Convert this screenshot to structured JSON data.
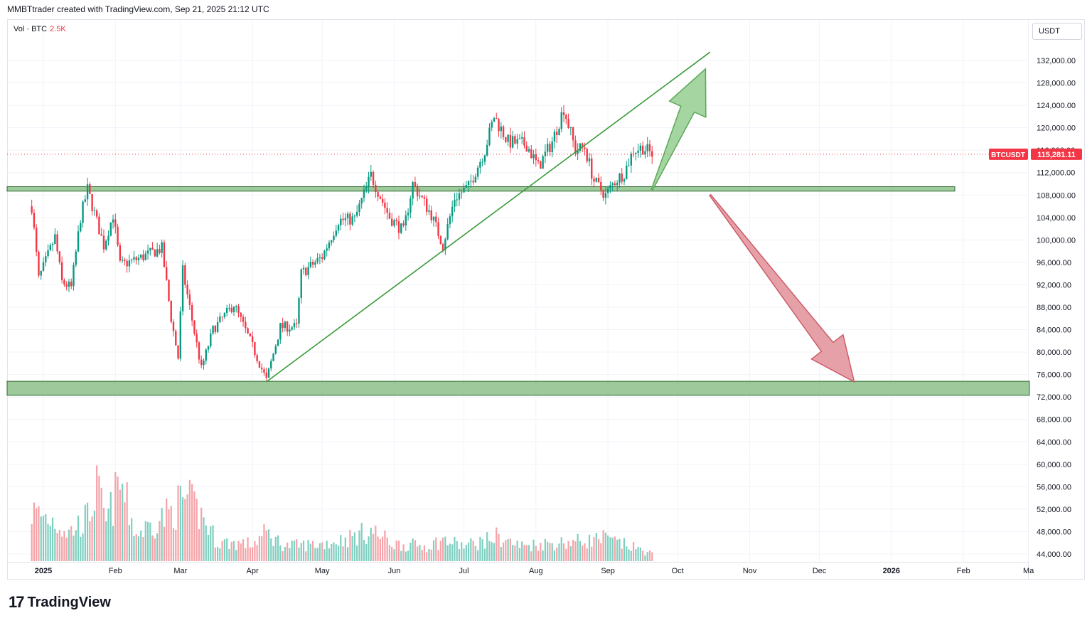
{
  "header": {
    "attribution": "MMBTtrader created with TradingView.com, Sep 21, 2025 21:12 UTC"
  },
  "volume_legend": {
    "label": "Vol · BTC",
    "value": "2.5K"
  },
  "currency_button": {
    "label": "USDT"
  },
  "price_label": {
    "symbol": "BTCUSDT",
    "price": "115,281.11"
  },
  "branding": {
    "logo_text": "TradingView"
  },
  "colors": {
    "up": "#089981",
    "down": "#f23645",
    "vol_up": "#7fcfc0",
    "vol_down": "#f5a3a8",
    "zone": "#8cc08a",
    "trend": "#3a9a3a",
    "arrow_up": "#8fcc8a",
    "arrow_down": "#e08a92"
  },
  "chart_data": {
    "type": "candlestick",
    "symbol": "BTCUSDT",
    "y_axis": {
      "ticks": [
        "132,000.00",
        "128,000.00",
        "124,000.00",
        "120,000.00",
        "116,000.00",
        "112,000.00",
        "108,000.00",
        "104,000.00",
        "100,000.00",
        "96,000.00",
        "92,000.00",
        "88,000.00",
        "84,000.00",
        "80,000.00",
        "76,000.00",
        "72,000.00",
        "68,000.00",
        "64,000.00",
        "60,000.00",
        "56,000.00",
        "52,000.00",
        "48,000.00",
        "44,000.00"
      ],
      "range": [
        43000,
        134500
      ]
    },
    "x_axis": {
      "ticks": [
        "2025",
        "Feb",
        "Mar",
        "Apr",
        "May",
        "Jun",
        "Jul",
        "Aug",
        "Sep",
        "Oct",
        "Nov",
        "Dec",
        "2026",
        "Feb",
        "Ma"
      ]
    },
    "last_price": 115281.11,
    "price_path": [
      [
        "2024-12-27",
        106000
      ],
      [
        "2024-12-30",
        93000
      ],
      [
        "2025-01-06",
        100500
      ],
      [
        "2025-01-09",
        92500
      ],
      [
        "2025-01-13",
        91500
      ],
      [
        "2025-01-17",
        104000
      ],
      [
        "2025-01-20",
        109000
      ],
      [
        "2025-01-27",
        99000
      ],
      [
        "2025-01-31",
        104500
      ],
      [
        "2025-02-03",
        95500
      ],
      [
        "2025-02-10",
        96500
      ],
      [
        "2025-02-21",
        98500
      ],
      [
        "2025-02-25",
        86000
      ],
      [
        "2025-02-28",
        79000
      ],
      [
        "2025-03-02",
        94500
      ],
      [
        "2025-03-10",
        77000
      ],
      [
        "2025-03-15",
        84000
      ],
      [
        "2025-03-24",
        88500
      ],
      [
        "2025-03-31",
        82000
      ],
      [
        "2025-04-07",
        75000
      ],
      [
        "2025-04-13",
        84500
      ],
      [
        "2025-04-20",
        84500
      ],
      [
        "2025-04-22",
        94000
      ],
      [
        "2025-05-01",
        97000
      ],
      [
        "2025-05-08",
        103500
      ],
      [
        "2025-05-15",
        103700
      ],
      [
        "2025-05-22",
        111500
      ],
      [
        "2025-05-30",
        104000
      ],
      [
        "2025-06-05",
        101500
      ],
      [
        "2025-06-09",
        110000
      ],
      [
        "2025-06-17",
        104500
      ],
      [
        "2025-06-22",
        99000
      ],
      [
        "2025-06-27",
        107500
      ],
      [
        "2025-07-03",
        109500
      ],
      [
        "2025-07-10",
        116000
      ],
      [
        "2025-07-14",
        122000
      ],
      [
        "2025-07-20",
        117500
      ],
      [
        "2025-07-28",
        117000
      ],
      [
        "2025-08-02",
        113000
      ],
      [
        "2025-08-08",
        117500
      ],
      [
        "2025-08-13",
        123500
      ],
      [
        "2025-08-18",
        116000
      ],
      [
        "2025-08-22",
        116500
      ],
      [
        "2025-08-26",
        110500
      ],
      [
        "2025-08-31",
        108000
      ],
      [
        "2025-09-04",
        110500
      ],
      [
        "2025-09-08",
        112000
      ],
      [
        "2025-09-12",
        116000
      ],
      [
        "2025-09-16",
        116500
      ],
      [
        "2025-09-20",
        115300
      ]
    ],
    "volume_path": [
      [
        "2024-12-27",
        2.6
      ],
      [
        "2025-01-05",
        2.2
      ],
      [
        "2025-01-12",
        1.5
      ],
      [
        "2025-01-20",
        2.3
      ],
      [
        "2025-01-24",
        3.8
      ],
      [
        "2025-01-28",
        2.0
      ],
      [
        "2025-02-03",
        4.1
      ],
      [
        "2025-02-10",
        1.4
      ],
      [
        "2025-02-25",
        2.6
      ],
      [
        "2025-03-03",
        3.3
      ],
      [
        "2025-03-10",
        2.4
      ],
      [
        "2025-03-17",
        1.0
      ],
      [
        "2025-04-01",
        0.9
      ],
      [
        "2025-04-07",
        1.5
      ],
      [
        "2025-04-15",
        0.8
      ],
      [
        "2025-05-01",
        0.9
      ],
      [
        "2025-05-12",
        1.2
      ],
      [
        "2025-05-22",
        1.6
      ],
      [
        "2025-06-01",
        0.9
      ],
      [
        "2025-06-15",
        0.8
      ],
      [
        "2025-06-22",
        1.1
      ],
      [
        "2025-07-01",
        0.8
      ],
      [
        "2025-07-11",
        1.1
      ],
      [
        "2025-07-15",
        1.3
      ],
      [
        "2025-07-25",
        0.8
      ],
      [
        "2025-08-02",
        0.9
      ],
      [
        "2025-08-15",
        1.0
      ],
      [
        "2025-08-25",
        1.1
      ],
      [
        "2025-08-30",
        1.2
      ],
      [
        "2025-09-04",
        1.0
      ],
      [
        "2025-09-10",
        0.8
      ],
      [
        "2025-09-20",
        0.4
      ]
    ],
    "zones": [
      {
        "from": 108700,
        "to": 109500
      },
      {
        "from": 72300,
        "to": 74800
      }
    ],
    "trendline": {
      "from": [
        "2025-04-07",
        74700
      ],
      "to": [
        "2025-10-15",
        133500
      ]
    },
    "arrows": [
      {
        "direction": "up",
        "from": [
          "2025-09-20",
          109000
        ],
        "to": [
          "2025-10-13",
          130500
        ]
      },
      {
        "direction": "down",
        "from": [
          "2025-10-15",
          108000
        ],
        "to": [
          "2025-12-16",
          74700
        ]
      }
    ],
    "grid": true,
    "legend": "top-left"
  }
}
